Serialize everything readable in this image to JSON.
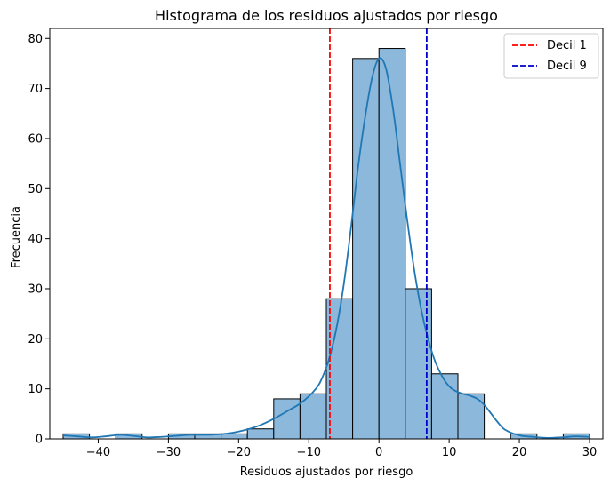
{
  "chart_data": {
    "type": "histogram",
    "title": "Histograma de los residuos ajustados por riesgo",
    "xlabel": "Residuos ajustados por riesgo",
    "ylabel": "Frecuencia",
    "xlim": [
      -46.9,
      31.9
    ],
    "ylim": [
      0,
      82
    ],
    "xticks": [
      -40,
      -30,
      -20,
      -10,
      0,
      10,
      20,
      30
    ],
    "xtick_labels": [
      "−40",
      "−30",
      "−20",
      "−10",
      "0",
      "10",
      "20",
      "30"
    ],
    "yticks": [
      0,
      10,
      20,
      30,
      40,
      50,
      60,
      70,
      80
    ],
    "ytick_labels": [
      "0",
      "10",
      "20",
      "30",
      "40",
      "50",
      "60",
      "70",
      "80"
    ],
    "bins": [
      {
        "x0": -45.0,
        "x1": -41.25,
        "count": 1
      },
      {
        "x0": -41.25,
        "x1": -37.5,
        "count": 0
      },
      {
        "x0": -37.5,
        "x1": -33.75,
        "count": 1
      },
      {
        "x0": -33.75,
        "x1": -30.0,
        "count": 0
      },
      {
        "x0": -30.0,
        "x1": -26.25,
        "count": 1
      },
      {
        "x0": -26.25,
        "x1": -22.5,
        "count": 1
      },
      {
        "x0": -22.5,
        "x1": -18.75,
        "count": 1
      },
      {
        "x0": -18.75,
        "x1": -15.0,
        "count": 2
      },
      {
        "x0": -15.0,
        "x1": -11.25,
        "count": 8
      },
      {
        "x0": -11.25,
        "x1": -7.5,
        "count": 9
      },
      {
        "x0": -7.5,
        "x1": -3.75,
        "count": 28
      },
      {
        "x0": -3.75,
        "x1": 0.0,
        "count": 76
      },
      {
        "x0": 0.0,
        "x1": 3.75,
        "count": 78
      },
      {
        "x0": 3.75,
        "x1": 7.5,
        "count": 30
      },
      {
        "x0": 7.5,
        "x1": 11.25,
        "count": 13
      },
      {
        "x0": 11.25,
        "x1": 15.0,
        "count": 9
      },
      {
        "x0": 15.0,
        "x1": 18.75,
        "count": 0
      },
      {
        "x0": 18.75,
        "x1": 22.5,
        "count": 1
      },
      {
        "x0": 22.5,
        "x1": 26.25,
        "count": 0
      },
      {
        "x0": 26.25,
        "x1": 30.0,
        "count": 1
      }
    ],
    "kde": {
      "x": [
        -45,
        -43,
        -41,
        -39,
        -37,
        -35,
        -33,
        -31,
        -29,
        -27,
        -25,
        -23,
        -21,
        -19,
        -17,
        -15,
        -13,
        -11,
        -9,
        -8,
        -7,
        -6,
        -5,
        -4,
        -3,
        -2,
        -1,
        0,
        1,
        2,
        3,
        4,
        5,
        6,
        7,
        8,
        9,
        10,
        11,
        12,
        13,
        14,
        15,
        16,
        17,
        18,
        20,
        22,
        24,
        26,
        28,
        30
      ],
      "y": [
        0.7,
        0.5,
        0.3,
        0.5,
        0.8,
        0.6,
        0.3,
        0.4,
        0.6,
        0.8,
        0.8,
        0.9,
        1.2,
        1.8,
        2.7,
        4.0,
        5.6,
        7.3,
        10.0,
        12.5,
        16.5,
        22.5,
        31.0,
        42.0,
        54.0,
        64.0,
        72.0,
        76.0,
        74.0,
        66.0,
        55.0,
        44.0,
        34.0,
        26.0,
        20.0,
        15.5,
        12.5,
        10.5,
        9.5,
        9.0,
        8.6,
        8.0,
        6.8,
        5.0,
        3.2,
        1.8,
        0.7,
        0.4,
        0.2,
        0.3,
        0.5,
        0.4
      ]
    },
    "vlines": [
      {
        "label": "Decil 1",
        "x": -7.0,
        "color": "#ff0000"
      },
      {
        "label": "Decil 9",
        "x": 6.8,
        "color": "#0000cd"
      }
    ],
    "legend": {
      "position": "top-right"
    },
    "colors": {
      "bar_fill": "#8cb8db",
      "bar_edge": "#000000",
      "kde": "#1f77b4"
    },
    "grid": false
  }
}
